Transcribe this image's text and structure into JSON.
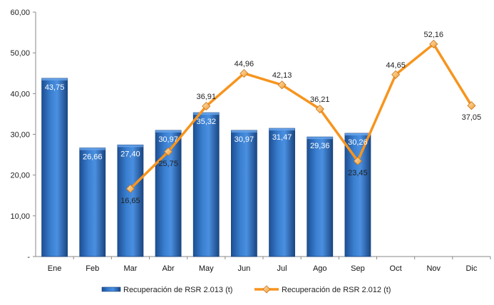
{
  "chart_data": {
    "type": "bar",
    "title": "",
    "xlabel": "",
    "ylabel": "",
    "ylim": [
      0,
      60
    ],
    "yticks": [
      "-",
      "10,00",
      "20,00",
      "30,00",
      "40,00",
      "50,00",
      "60,00"
    ],
    "categories": [
      "Ene",
      "Feb",
      "Mar",
      "Abr",
      "May",
      "Jun",
      "Jul",
      "Ago",
      "Sep",
      "Oct",
      "Nov",
      "Dic"
    ],
    "grid": false,
    "legend_position": "bottom",
    "series": [
      {
        "name": "Recuperación de RSR 2.013 (t)",
        "type": "bar",
        "color": "#2f6fbf",
        "values": [
          43.75,
          26.66,
          27.4,
          30.97,
          35.32,
          30.97,
          31.47,
          29.36,
          30.26,
          null,
          null,
          null
        ],
        "labels": [
          "43,75",
          "26,66",
          "27,40",
          "30,97",
          "35,32",
          "30,97",
          "31,47",
          "29,36",
          "30,26",
          "",
          "",
          ""
        ]
      },
      {
        "name": "Recuperación de RSR 2.012 (t)",
        "type": "line",
        "color": "#f7941d",
        "values": [
          null,
          null,
          16.65,
          25.75,
          36.91,
          44.96,
          42.13,
          36.21,
          23.45,
          44.65,
          52.16,
          37.05
        ],
        "labels": [
          "",
          "",
          "16,65",
          "25,75",
          "36,91",
          "44,96",
          "42,13",
          "36,21",
          "23,45",
          "44,65",
          "52,16",
          "37,05"
        ]
      }
    ]
  }
}
